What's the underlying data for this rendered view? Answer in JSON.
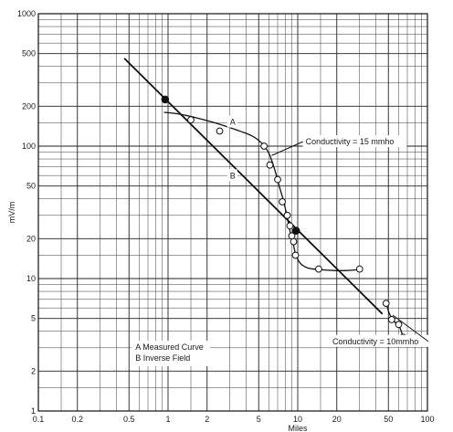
{
  "chart_data": {
    "type": "line",
    "xscale": "log",
    "yscale": "log",
    "xlim": [
      0.1,
      100
    ],
    "ylim": [
      1,
      1000
    ],
    "xlabel": "Miles",
    "ylabel": "mV/m",
    "grid": true,
    "x_ticks": [
      0.1,
      0.2,
      0.5,
      1,
      2,
      5,
      10,
      20,
      50,
      100
    ],
    "x_tick_labels": [
      "0.1",
      "0.2",
      "0.5",
      "1",
      "2",
      "5",
      "10",
      "20",
      "50",
      "100"
    ],
    "y_ticks": [
      1,
      2,
      5,
      10,
      20,
      50,
      100,
      200,
      500,
      1000
    ],
    "y_tick_labels": [
      "1",
      "2",
      "5",
      "10",
      "20",
      "50",
      "100",
      "200",
      "500",
      "1000"
    ],
    "series": [
      {
        "name": "A",
        "legend": "A Measured Curve",
        "style": "curve",
        "x": [
          0.93,
          1.2,
          1.6,
          2.3,
          3.2,
          4.4,
          5.3,
          6.0,
          6.6,
          7.2,
          7.8,
          8.3,
          8.7,
          9.2,
          9.7,
          10.5,
          12,
          14.5,
          19,
          24,
          30
        ],
        "y": [
          180,
          175,
          165,
          150,
          135,
          120,
          105,
          88,
          68,
          50,
          38,
          29,
          23,
          18.5,
          15,
          13,
          12,
          11.7,
          11.5,
          11.5,
          11.7
        ]
      },
      {
        "name": "",
        "style": "curve",
        "x": [
          48,
          51,
          56,
          61,
          65
        ],
        "y": [
          6.6,
          5.4,
          4.7,
          4.3,
          3.6
        ]
      },
      {
        "name": "B",
        "legend": "B Inverse Field",
        "style": "line",
        "x": [
          0.46,
          45
        ],
        "y": [
          460,
          5.4
        ]
      }
    ],
    "points": {
      "open": [
        [
          1.5,
          158
        ],
        [
          2.5,
          130
        ],
        [
          5.5,
          100
        ],
        [
          6.1,
          72
        ],
        [
          7.0,
          56
        ],
        [
          7.6,
          38
        ],
        [
          8.3,
          30
        ],
        [
          8.7,
          25
        ],
        [
          9.0,
          21
        ],
        [
          9.3,
          19
        ],
        [
          9.6,
          15
        ],
        [
          14.5,
          11.8
        ],
        [
          30,
          11.8
        ],
        [
          48,
          6.5
        ],
        [
          53,
          4.9
        ],
        [
          60,
          4.5
        ],
        [
          65,
          3.6
        ]
      ],
      "filled": [
        [
          0.95,
          225
        ],
        [
          9.7,
          23
        ]
      ]
    },
    "annotations": [
      {
        "text": "A",
        "x": 3.0,
        "y": 145
      },
      {
        "text": "B",
        "x": 3.0,
        "y": 57
      },
      {
        "text": "Conductivity = 15 mmho",
        "x": 11.5,
        "y": 103,
        "pointer_to": [
          6.3,
          85
        ]
      },
      {
        "text": "Conductivity = 10mmho",
        "x": 18.5,
        "y": 3.2,
        "pointer_to": [
          54,
          5.3
        ]
      }
    ],
    "legend": {
      "position": "bottom-left",
      "entries": [
        "A Measured Curve",
        "B Inverse Field"
      ]
    }
  }
}
